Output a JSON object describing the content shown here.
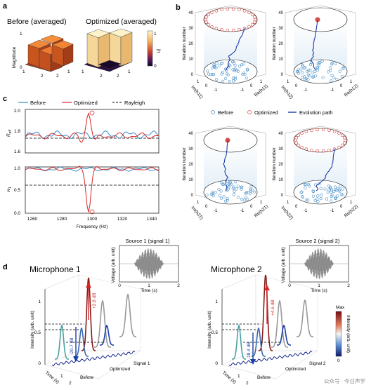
{
  "panel_a": {
    "label": "a",
    "title_left": "Before (averaged)",
    "title_right": "Optimized (averaged)",
    "ylabel": "Magnitude",
    "yticks": [
      "1",
      "0"
    ],
    "xticks": [
      "1",
      "2",
      "1",
      "2"
    ],
    "colorbar_label": "|h",
    "colorbar_ticks": [
      "1",
      "0"
    ]
  },
  "panel_b": {
    "label": "b",
    "zlabel": "Iteration number",
    "zticks": [
      "40",
      "30",
      "20",
      "10",
      "0"
    ],
    "axis_ticks": [
      "1",
      "0",
      "-1",
      "-1",
      "0",
      "1"
    ],
    "subplots": [
      {
        "re": "Re(h11)",
        "im": "Im(h11)"
      },
      {
        "re": "Re(h12)",
        "im": "Im(h12)"
      },
      {
        "re": "Re(h21)",
        "im": "Im(h21)"
      },
      {
        "re": "Re(h22)",
        "im": "Im(h22)"
      }
    ],
    "legend": [
      "Before",
      "Optimized",
      "Evolution path"
    ],
    "colors": {
      "before": "#4a90c8",
      "optimized": "#d9534f",
      "path": "#1a3ea8"
    }
  },
  "panel_c": {
    "label": "c",
    "legend": [
      "Before",
      "Optimized",
      "Rayleigh"
    ],
    "xlabel": "Frequency (Hz)",
    "top_ylabel": "R",
    "top_ylabel_sub": "eff",
    "bottom_ylabel": "w",
    "bottom_ylabel_sub": "1",
    "xticks": [
      "1260",
      "1280",
      "1300",
      "1320",
      "1340"
    ],
    "top_yticks": [
      "2.0",
      "1.8",
      "1.6"
    ],
    "bottom_yticks": [
      "1.0",
      "0.5",
      "0.0"
    ],
    "colors": {
      "before": "#3a8cc9",
      "optimized": "#d62728",
      "rayleigh": "#000000"
    }
  },
  "panel_d": {
    "label": "d",
    "mic1_title": "Microphone 1",
    "mic2_title": "Microphone 2",
    "source1_title": "Source 1 (signal 1)",
    "source2_title": "Source 2 (signal 2)",
    "voltage_label": "Voltage (arb. unit)",
    "time_label": "Time (s)",
    "intensity_label": "Intensity (arb. unit)",
    "mini_xticks": [
      "0",
      "1",
      "2"
    ],
    "int_ticks": [
      "1",
      "0.5",
      "0"
    ],
    "mic1_annot_up": "+2.8 dB",
    "mic1_annot_down": "-20.7 dB",
    "mic2_annot_up": "+4.6 dB",
    "mic2_annot_down": "-18.4 dB",
    "floor_labels": [
      "Before",
      "Optimized",
      "Signal 1"
    ],
    "floor_labels2": [
      "Before",
      "Optimized",
      "Signal 2"
    ],
    "time_ticks": [
      "1",
      "2"
    ],
    "colorbar_max": "Max",
    "colorbar_min": "0",
    "colorbar_label": "Intensity (arb. unit)"
  },
  "watermark": "公众号 · 今日声学"
}
